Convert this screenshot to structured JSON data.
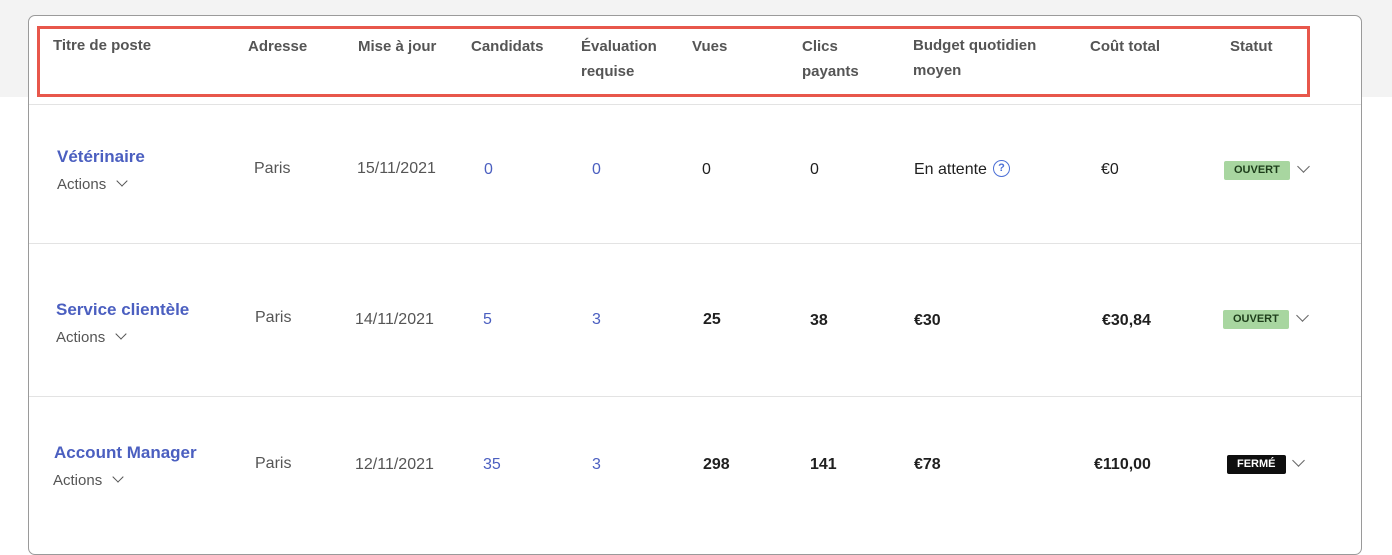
{
  "headers": {
    "title": "Titre de poste",
    "address": "Adresse",
    "updated": "Mise à jour",
    "candidates": "Candidats",
    "evaluation_1": "Évaluation",
    "evaluation_2": "requise",
    "views": "Vues",
    "clicks_1": "Clics",
    "clicks_2": "payants",
    "budget_1": "Budget quotidien",
    "budget_2": "moyen",
    "total_cost": "Coût total",
    "status": "Statut"
  },
  "rows": [
    {
      "title": "Vétérinaire",
      "actions": "Actions",
      "address": "Paris",
      "updated": "15/11/2021",
      "candidates": "0",
      "evaluation": "0",
      "views": "0",
      "clicks": "0",
      "budget": "En attente",
      "total_cost": "€0",
      "status": "OUVERT"
    },
    {
      "title": "Service clientèle",
      "actions": "Actions",
      "address": "Paris",
      "updated": "14/11/2021",
      "candidates": "5",
      "evaluation": "3",
      "views": "25",
      "clicks": "38",
      "budget": "€30",
      "total_cost": "€30,84",
      "status": "OUVERT"
    },
    {
      "title": "Account Manager",
      "actions": "Actions",
      "address": "Paris",
      "updated": "12/11/2021",
      "candidates": "35",
      "evaluation": "3",
      "views": "298",
      "clicks": "141",
      "budget": "€78",
      "total_cost": "€110,00",
      "status": "FERMÉ"
    }
  ],
  "help_icon_glyph": "?",
  "colors": {
    "highlight": "#e8574b",
    "link": "#4b5fc0",
    "open_badge": "#a8d6a0",
    "closed_badge": "#0e0e0e"
  }
}
